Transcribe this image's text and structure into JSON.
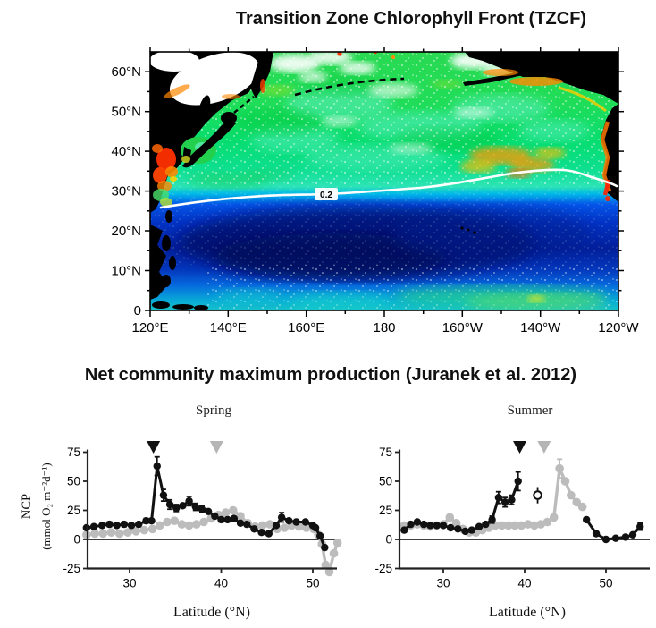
{
  "titles": {
    "map": "Transition Zone Chlorophyll Front (TZCF)",
    "ncp": "Net community maximum production (Juranek et al. 2012)"
  },
  "map_figure": {
    "contour_label": "0.2",
    "lat_ticks": [
      "60°N",
      "50°N",
      "40°N",
      "30°N",
      "20°N",
      "10°N",
      "0"
    ],
    "lon_ticks": [
      "120°E",
      "140°E",
      "160°E",
      "180",
      "160°W",
      "140°W",
      "120°W"
    ],
    "ocean_colors": {
      "high_chl_green": "#15dd55",
      "transition_cyan": "#2ce4b4",
      "gyre_blue": "#0233c4",
      "gyre_core": "#020c66",
      "coastal_red": "#ff3000",
      "coastal_orange": "#ff8800"
    }
  },
  "ncp_figure": {
    "ylabel_acronym": "NCP",
    "ylabel_units": "(mmol O₂ m⁻²d⁻¹)",
    "series_colors": {
      "black": "#111111",
      "gray": "#bcbcbc"
    }
  },
  "chart_data": [
    {
      "type": "line",
      "title": "Spring",
      "xlabel": "Latitude (°N)",
      "ylabel": "NCP (mmol O₂ m⁻²d⁻¹)",
      "xlim": [
        25,
        55
      ],
      "ylim": [
        -25,
        75
      ],
      "xticks": [
        30,
        40,
        50
      ],
      "yticks": [
        75,
        50,
        25,
        0,
        -25
      ],
      "grid": false,
      "legend": false,
      "series": [
        {
          "name": "gray-cruise",
          "color": "#bcbcbc",
          "marker_r": 4.8,
          "line_w": 3.4,
          "segments": [
            [
              [
                25.3,
                4,
                0
              ],
              [
                26.2,
                5,
                0
              ],
              [
                27.1,
                5,
                0
              ],
              [
                28,
                6,
                0
              ],
              [
                28.9,
                5,
                0
              ],
              [
                29.8,
                6,
                0
              ],
              [
                30.7,
                7,
                0
              ],
              [
                31.6,
                8,
                0
              ],
              [
                32.5,
                9,
                0
              ],
              [
                33.3,
                12,
                0
              ],
              [
                34.1,
                15,
                0
              ],
              [
                34.9,
                16,
                0
              ],
              [
                35.7,
                13,
                0
              ],
              [
                36.5,
                12,
                0
              ],
              [
                37.3,
                13,
                0
              ],
              [
                38.1,
                15,
                0
              ],
              [
                38.9,
                18,
                0
              ],
              [
                39.7,
                21,
                0
              ],
              [
                40.5,
                23,
                0
              ],
              [
                41.3,
                25,
                0
              ],
              [
                42.1,
                20,
                0
              ],
              [
                42.9,
                14,
                0
              ],
              [
                43.7,
                11,
                0
              ],
              [
                44.5,
                12,
                0
              ],
              [
                45.3,
                13,
                0
              ],
              [
                46.1,
                9,
                0
              ],
              [
                46.9,
                10,
                0
              ],
              [
                47.7,
                12,
                0
              ],
              [
                48.5,
                11,
                0
              ],
              [
                49.3,
                10,
                0
              ],
              [
                50.1,
                9,
                0
              ],
              [
                50.6,
                4,
                0
              ],
              [
                51,
                -4,
                0
              ],
              [
                51.4,
                -22,
                0
              ],
              [
                51.8,
                -28,
                0
              ],
              [
                52.3,
                -12,
                0
              ],
              [
                52.7,
                -3,
                0
              ]
            ]
          ]
        },
        {
          "name": "black-cruise",
          "color": "#111111",
          "marker_r": 4.2,
          "line_w": 3,
          "segments": [
            [
              [
                25.3,
                10,
                0
              ],
              [
                26.1,
                11,
                0
              ],
              [
                27,
                12,
                0
              ],
              [
                27.8,
                13,
                2
              ],
              [
                28.6,
                12,
                0
              ],
              [
                29.4,
                13,
                2
              ],
              [
                30.2,
                12,
                0
              ],
              [
                31,
                13,
                0
              ],
              [
                31.8,
                16,
                2
              ],
              [
                32.4,
                16,
                0
              ],
              [
                33,
                63,
                8
              ],
              [
                33.7,
                38,
                5
              ],
              [
                34.4,
                30,
                4
              ],
              [
                35.1,
                27,
                3
              ],
              [
                35.8,
                29,
                0
              ],
              [
                36.5,
                33,
                4
              ],
              [
                37.2,
                28,
                3
              ],
              [
                37.9,
                26,
                3
              ],
              [
                38.6,
                24,
                0
              ],
              [
                39.3,
                20,
                0
              ],
              [
                40,
                17,
                2
              ],
              [
                40.7,
                17,
                0
              ],
              [
                41.4,
                18,
                0
              ],
              [
                42.1,
                14,
                0
              ],
              [
                42.8,
                13,
                0
              ],
              [
                43.6,
                9,
                0
              ],
              [
                44.4,
                6,
                0
              ],
              [
                45.2,
                5,
                0
              ],
              [
                46,
                12,
                0
              ],
              [
                46.6,
                19,
                4
              ],
              [
                47.4,
                16,
                0
              ],
              [
                48.2,
                15,
                0
              ],
              [
                49.2,
                15,
                0
              ],
              [
                50,
                12,
                0
              ],
              [
                50.3,
                10,
                0
              ],
              [
                50.8,
                3,
                0
              ],
              [
                51.3,
                -7,
                0
              ]
            ]
          ]
        }
      ],
      "front_markers": [
        {
          "shape": "triangle-down",
          "color": "#111111",
          "lat": 32.6
        },
        {
          "shape": "triangle-down",
          "color": "#b5b5b5",
          "lat": 39.5
        }
      ]
    },
    {
      "type": "line",
      "title": "Summer",
      "xlabel": "Latitude (°N)",
      "ylabel": "NCP (mmol O₂ m⁻²d⁻¹)",
      "xlim": [
        25,
        55
      ],
      "ylim": [
        -25,
        75
      ],
      "xticks": [
        30,
        40,
        50
      ],
      "yticks": [
        75,
        50,
        25,
        0,
        -25
      ],
      "grid": false,
      "legend": false,
      "series": [
        {
          "name": "gray-cruise",
          "color": "#bcbcbc",
          "marker_r": 4.8,
          "line_w": 3.4,
          "segments": [
            [
              [
                25.2,
                12,
                0
              ],
              [
                26,
                12,
                0
              ],
              [
                26.8,
                13,
                0
              ],
              [
                27.6,
                12,
                0
              ],
              [
                28.4,
                11,
                0
              ],
              [
                29.2,
                12,
                0
              ],
              [
                30,
                13,
                0
              ],
              [
                30.8,
                19,
                0
              ],
              [
                31.6,
                14,
                0
              ],
              [
                32.4,
                9,
                0
              ],
              [
                33.2,
                6,
                0
              ],
              [
                34,
                6,
                0
              ],
              [
                34.8,
                8,
                0
              ],
              [
                35.6,
                10,
                0
              ],
              [
                36.4,
                12,
                0
              ],
              [
                37.2,
                12,
                0
              ],
              [
                38,
                12,
                0
              ],
              [
                38.8,
                12,
                0
              ],
              [
                39.6,
                12,
                0
              ],
              [
                40.4,
                13,
                0
              ],
              [
                41.2,
                12,
                0
              ],
              [
                42,
                13,
                0
              ],
              [
                42.8,
                15,
                0
              ],
              [
                43.6,
                19,
                0
              ],
              [
                44.3,
                61,
                8
              ],
              [
                45,
                50,
                0
              ],
              [
                45.7,
                38,
                0
              ],
              [
                46.4,
                32,
                0
              ],
              [
                47.1,
                28,
                0
              ]
            ]
          ]
        },
        {
          "name": "black-cruise",
          "color": "#111111",
          "marker_r": 4.2,
          "line_w": 3,
          "segments": [
            [
              [
                25.2,
                8,
                0
              ],
              [
                26,
                13,
                0
              ],
              [
                26.8,
                15,
                0
              ],
              [
                27.6,
                13,
                0
              ],
              [
                28.4,
                12,
                0
              ],
              [
                29.2,
                12,
                0
              ],
              [
                30,
                12,
                0
              ],
              [
                30.9,
                10,
                0
              ],
              [
                31.8,
                9,
                0
              ],
              [
                32.7,
                7,
                0
              ],
              [
                33.5,
                8,
                0
              ],
              [
                34.4,
                11,
                0
              ],
              [
                35.2,
                13,
                0
              ],
              [
                36,
                17,
                3
              ],
              [
                36.8,
                36,
                5
              ],
              [
                37.6,
                32,
                4
              ],
              [
                38.4,
                34,
                4
              ],
              [
                39.2,
                50,
                8
              ]
            ],
            [
              [
                47.6,
                17,
                0
              ],
              [
                48.8,
                5,
                0
              ],
              [
                50,
                0,
                0
              ],
              [
                51.2,
                1,
                0
              ],
              [
                52.4,
                2,
                0
              ],
              [
                53.3,
                4,
                0
              ],
              [
                54.2,
                11,
                3
              ]
            ]
          ]
        }
      ],
      "open_point": {
        "lat": 41.6,
        "value": 38,
        "err": 7
      },
      "front_markers": [
        {
          "shape": "triangle-down",
          "color": "#111111",
          "lat": 39.4
        },
        {
          "shape": "triangle-down",
          "color": "#b5b5b5",
          "lat": 42.4
        }
      ]
    }
  ]
}
